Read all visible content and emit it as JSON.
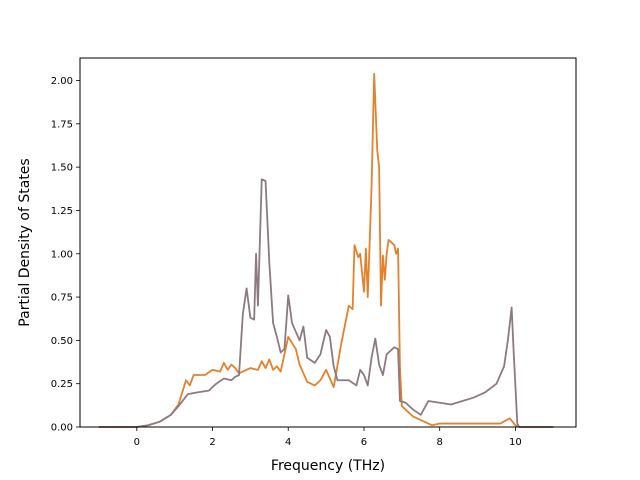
{
  "chart_data": {
    "type": "line",
    "xlabel": "Frequency (THz)",
    "ylabel": "Partial Density of States",
    "xlim": [
      -1.5,
      11.6
    ],
    "ylim": [
      0,
      2.13
    ],
    "x_ticks": [
      "0",
      "2",
      "4",
      "6",
      "8",
      "10"
    ],
    "y_ticks": [
      "0.00",
      "0.25",
      "0.50",
      "0.75",
      "1.00",
      "1.25",
      "1.50",
      "1.75",
      "2.00"
    ],
    "grid": false,
    "legend": "none",
    "series": [
      {
        "color": "#e6812b",
        "points": [
          [
            -1.0,
            0
          ],
          [
            0.0,
            0
          ],
          [
            0.3,
            0.01
          ],
          [
            0.6,
            0.03
          ],
          [
            0.9,
            0.07
          ],
          [
            1.1,
            0.13
          ],
          [
            1.3,
            0.27
          ],
          [
            1.4,
            0.24
          ],
          [
            1.5,
            0.3
          ],
          [
            1.8,
            0.3
          ],
          [
            2.0,
            0.33
          ],
          [
            2.2,
            0.32
          ],
          [
            2.3,
            0.37
          ],
          [
            2.4,
            0.33
          ],
          [
            2.5,
            0.36
          ],
          [
            2.6,
            0.34
          ],
          [
            2.7,
            0.31
          ],
          [
            2.8,
            0.32
          ],
          [
            3.0,
            0.34
          ],
          [
            3.2,
            0.33
          ],
          [
            3.3,
            0.38
          ],
          [
            3.4,
            0.34
          ],
          [
            3.5,
            0.39
          ],
          [
            3.6,
            0.33
          ],
          [
            3.7,
            0.35
          ],
          [
            3.8,
            0.32
          ],
          [
            3.9,
            0.42
          ],
          [
            4.0,
            0.52
          ],
          [
            4.2,
            0.45
          ],
          [
            4.3,
            0.36
          ],
          [
            4.5,
            0.26
          ],
          [
            4.7,
            0.24
          ],
          [
            4.85,
            0.27
          ],
          [
            5.0,
            0.33
          ],
          [
            5.1,
            0.28
          ],
          [
            5.2,
            0.23
          ],
          [
            5.4,
            0.48
          ],
          [
            5.6,
            0.7
          ],
          [
            5.7,
            0.68
          ],
          [
            5.75,
            1.05
          ],
          [
            5.85,
            0.98
          ],
          [
            5.9,
            1.0
          ],
          [
            6.0,
            0.78
          ],
          [
            6.05,
            1.03
          ],
          [
            6.1,
            0.75
          ],
          [
            6.2,
            1.38
          ],
          [
            6.27,
            2.04
          ],
          [
            6.35,
            1.6
          ],
          [
            6.4,
            1.5
          ],
          [
            6.45,
            0.7
          ],
          [
            6.5,
            0.99
          ],
          [
            6.55,
            0.85
          ],
          [
            6.6,
            1.0
          ],
          [
            6.65,
            1.08
          ],
          [
            6.8,
            1.05
          ],
          [
            6.85,
            1.0
          ],
          [
            6.9,
            1.03
          ],
          [
            6.95,
            0.35
          ],
          [
            7.0,
            0.12
          ],
          [
            7.3,
            0.06
          ],
          [
            7.6,
            0.03
          ],
          [
            7.8,
            0.01
          ],
          [
            8.0,
            0.02
          ],
          [
            8.3,
            0.02
          ],
          [
            8.7,
            0.02
          ],
          [
            9.2,
            0.02
          ],
          [
            9.6,
            0.02
          ],
          [
            9.85,
            0.05
          ],
          [
            10.0,
            0.01
          ],
          [
            10.1,
            0
          ],
          [
            11.0,
            0
          ]
        ]
      },
      {
        "color": "#8c7a82",
        "points": [
          [
            -1.0,
            0
          ],
          [
            0.0,
            0
          ],
          [
            0.3,
            0.01
          ],
          [
            0.6,
            0.03
          ],
          [
            0.9,
            0.07
          ],
          [
            1.1,
            0.12
          ],
          [
            1.35,
            0.19
          ],
          [
            1.6,
            0.2
          ],
          [
            1.9,
            0.21
          ],
          [
            2.1,
            0.25
          ],
          [
            2.3,
            0.28
          ],
          [
            2.5,
            0.27
          ],
          [
            2.6,
            0.29
          ],
          [
            2.7,
            0.3
          ],
          [
            2.8,
            0.65
          ],
          [
            2.9,
            0.8
          ],
          [
            3.0,
            0.63
          ],
          [
            3.1,
            0.62
          ],
          [
            3.15,
            1.0
          ],
          [
            3.2,
            0.7
          ],
          [
            3.3,
            1.43
          ],
          [
            3.4,
            1.42
          ],
          [
            3.5,
            0.95
          ],
          [
            3.6,
            0.6
          ],
          [
            3.7,
            0.52
          ],
          [
            3.8,
            0.43
          ],
          [
            3.9,
            0.45
          ],
          [
            4.0,
            0.76
          ],
          [
            4.1,
            0.6
          ],
          [
            4.2,
            0.55
          ],
          [
            4.3,
            0.5
          ],
          [
            4.4,
            0.58
          ],
          [
            4.5,
            0.4
          ],
          [
            4.7,
            0.37
          ],
          [
            4.85,
            0.42
          ],
          [
            5.0,
            0.56
          ],
          [
            5.1,
            0.52
          ],
          [
            5.2,
            0.35
          ],
          [
            5.3,
            0.27
          ],
          [
            5.6,
            0.27
          ],
          [
            5.8,
            0.24
          ],
          [
            5.9,
            0.33
          ],
          [
            6.0,
            0.3
          ],
          [
            6.1,
            0.24
          ],
          [
            6.2,
            0.4
          ],
          [
            6.3,
            0.51
          ],
          [
            6.4,
            0.36
          ],
          [
            6.5,
            0.3
          ],
          [
            6.6,
            0.42
          ],
          [
            6.8,
            0.46
          ],
          [
            6.9,
            0.45
          ],
          [
            6.95,
            0.15
          ],
          [
            7.1,
            0.14
          ],
          [
            7.3,
            0.1
          ],
          [
            7.5,
            0.07
          ],
          [
            7.7,
            0.15
          ],
          [
            8.0,
            0.14
          ],
          [
            8.3,
            0.13
          ],
          [
            8.6,
            0.15
          ],
          [
            8.9,
            0.17
          ],
          [
            9.2,
            0.2
          ],
          [
            9.5,
            0.25
          ],
          [
            9.7,
            0.35
          ],
          [
            9.8,
            0.5
          ],
          [
            9.9,
            0.69
          ],
          [
            9.95,
            0.45
          ],
          [
            10.05,
            0.02
          ],
          [
            10.1,
            0
          ],
          [
            11.0,
            0
          ]
        ]
      }
    ]
  }
}
